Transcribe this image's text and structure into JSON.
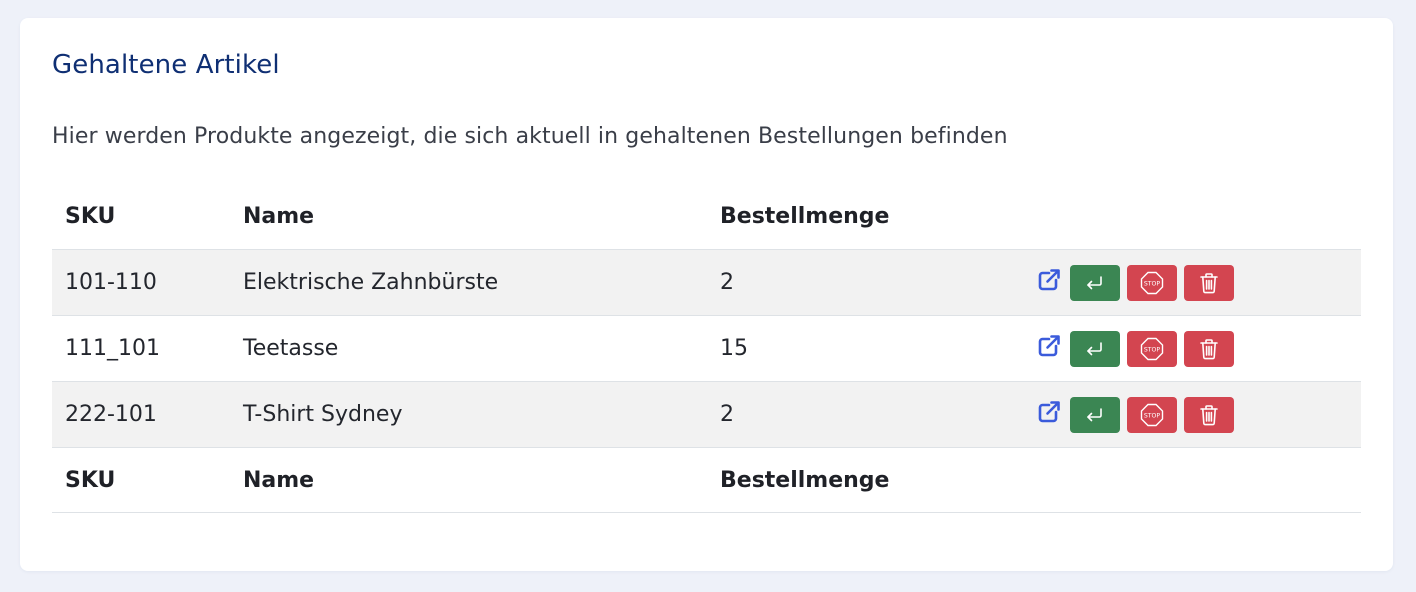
{
  "page": {
    "title": "Gehaltene Artikel",
    "description": "Hier werden Produkte angezeigt, die sich aktuell in gehaltenen Bestellungen befinden"
  },
  "table": {
    "columns": {
      "sku": "SKU",
      "name": "Name",
      "quantity": "Bestellmenge",
      "actions": ""
    },
    "rows": [
      {
        "sku": "101-110",
        "name": "Elektrische Zahnbürste",
        "quantity": "2"
      },
      {
        "sku": "111_101",
        "name": "Teetasse",
        "quantity": "15"
      },
      {
        "sku": "222-101",
        "name": "T-Shirt Sydney",
        "quantity": "2"
      }
    ],
    "row_actions": [
      "external-link-icon",
      "return-button",
      "stop-button",
      "delete-button"
    ]
  },
  "colors": {
    "title": "#0f2f73",
    "link_icon": "#3b5bdb",
    "success": "#3b8653",
    "danger": "#d34550",
    "row_stripe": "#f2f2f2"
  }
}
